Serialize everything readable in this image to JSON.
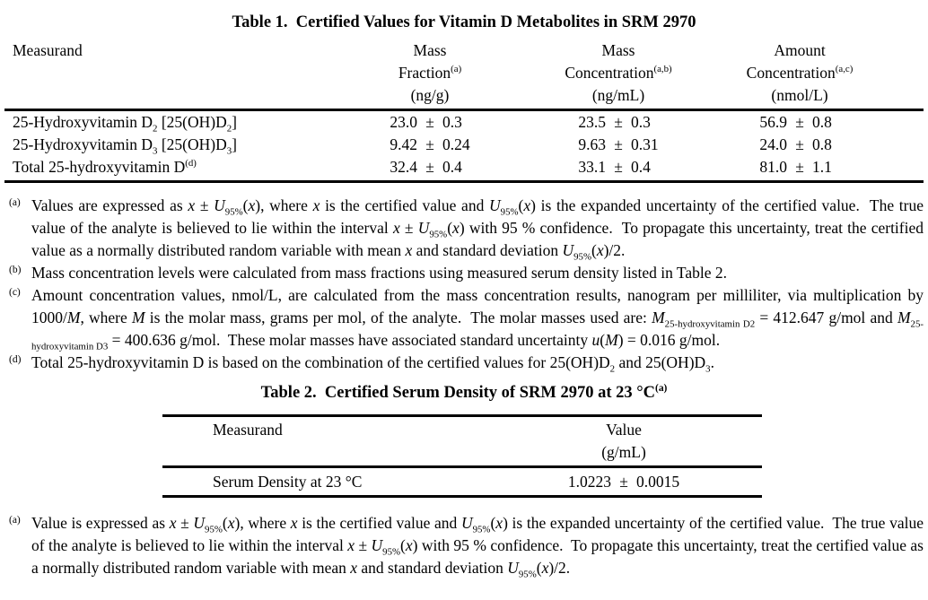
{
  "page": {
    "background": "#ffffff",
    "text_color": "#000000"
  },
  "table1": {
    "title_html": "Table 1.&nbsp; Certified Values for Vitamin D Metabolites in SRM 2970",
    "headers": {
      "measurand": "Measurand",
      "mass_fraction_html": "Mass<br>Fraction<sup>(a)</sup><br>(ng/g)",
      "mass_concentration_html": "Mass<br>Concentration<sup>(a,b)</sup><br>(ng/mL)",
      "amount_concentration_html": "Amount<br>Concentration<sup>(a,c)</sup><br>(nmol/L)"
    },
    "rows": [
      {
        "measurand_html": "25-Hydroxyvitamin D<sub>2</sub> [25(OH)D<sub>2</sub>]",
        "mass_fraction": {
          "value": "23.0",
          "pm": "±",
          "uncertainty": "0.3"
        },
        "mass_concentration": {
          "value": "23.5",
          "pm": "±",
          "uncertainty": "0.3"
        },
        "amount_concentration": {
          "value": "56.9",
          "pm": "±",
          "uncertainty": "0.8"
        }
      },
      {
        "measurand_html": "25-Hydroxyvitamin D<sub>3</sub> [25(OH)D<sub>3</sub>]",
        "mass_fraction": {
          "value": "9.42",
          "pm": "±",
          "uncertainty": "0.24"
        },
        "mass_concentration": {
          "value": "9.63",
          "pm": "±",
          "uncertainty": "0.31"
        },
        "amount_concentration": {
          "value": "24.0",
          "pm": "±",
          "uncertainty": "0.8"
        }
      },
      {
        "measurand_html": "Total 25-hydroxyvitamin D<sup>(d)</sup>",
        "mass_fraction": {
          "value": "32.4",
          "pm": "±",
          "uncertainty": "0.4"
        },
        "mass_concentration": {
          "value": "33.1",
          "pm": "±",
          "uncertainty": "0.4"
        },
        "amount_concentration": {
          "value": "81.0",
          "pm": "±",
          "uncertainty": "1.1"
        }
      }
    ],
    "footnotes": [
      {
        "marker": "(a)",
        "text_html": "Values are expressed as <i>x</i> ± <i>U</i><sub>95%</sub>(<i>x</i>), where <i>x</i> is the certified value and <i>U</i><sub>95%</sub>(<i>x</i>) is the expanded uncertainty of the certified value.&nbsp; The true value of the analyte is believed to lie within the interval <i>x</i> ± <i>U</i><sub>95%</sub>(<i>x</i>) with 95 % confidence.&nbsp; To propagate this uncertainty, treat the certified value as a normally distributed random variable with mean <i>x</i> and standard deviation <i>U</i><sub>95%</sub>(<i>x</i>)/2."
      },
      {
        "marker": "(b)",
        "text_html": "Mass concentration levels were calculated from mass fractions using measured serum density listed in Table 2."
      },
      {
        "marker": "(c)",
        "text_html": "Amount concentration values, nmol/L, are calculated from the mass concentration results, nanogram per milliliter, via multiplication by 1000/<i>M</i>, where <i>M</i> is the molar mass, grams per mol, of the analyte.&nbsp; The molar masses used are: <i>M</i><sub>25-hydroxyvitamin D2</sub> = 412.647 g/mol and <i>M</i><sub>25-hydroxyvitamin D3</sub> = 400.636 g/mol.&nbsp; These molar masses have associated standard uncertainty <i>u</i>(<i>M</i>) = 0.016 g/mol."
      },
      {
        "marker": "(d)",
        "text_html": "Total 25-hydroxyvitamin D is based on the combination of the certified values for 25(OH)D<sub>2</sub> and 25(OH)D<sub>3</sub>."
      }
    ]
  },
  "table2": {
    "title_html": "Table 2.&nbsp; Certified Serum Density of SRM 2970 at 23 °C<sup>(a)</sup>",
    "headers": {
      "measurand": "Measurand",
      "value_html": "Value<br>(g/mL)"
    },
    "rows": [
      {
        "measurand": "Serum Density at 23 °C",
        "value": {
          "value": "1.0223",
          "pm": "±",
          "uncertainty": "0.0015"
        }
      }
    ],
    "footnotes": [
      {
        "marker": "(a)",
        "text_html": "Value is expressed as <i>x</i> ± <i>U</i><sub>95%</sub>(<i>x</i>), where <i>x</i> is the certified value and <i>U</i><sub>95%</sub>(<i>x</i>) is the expanded uncertainty of the certified value.&nbsp; The true value of the analyte is believed to lie within the interval <i>x</i> ± <i>U</i><sub>95%</sub>(<i>x</i>) with 95 % confidence.&nbsp; To propagate this uncertainty, treat the certified value as a normally distributed random variable with mean <i>x</i> and standard deviation <i>U</i><sub>95%</sub>(<i>x</i>)/2."
      }
    ]
  }
}
